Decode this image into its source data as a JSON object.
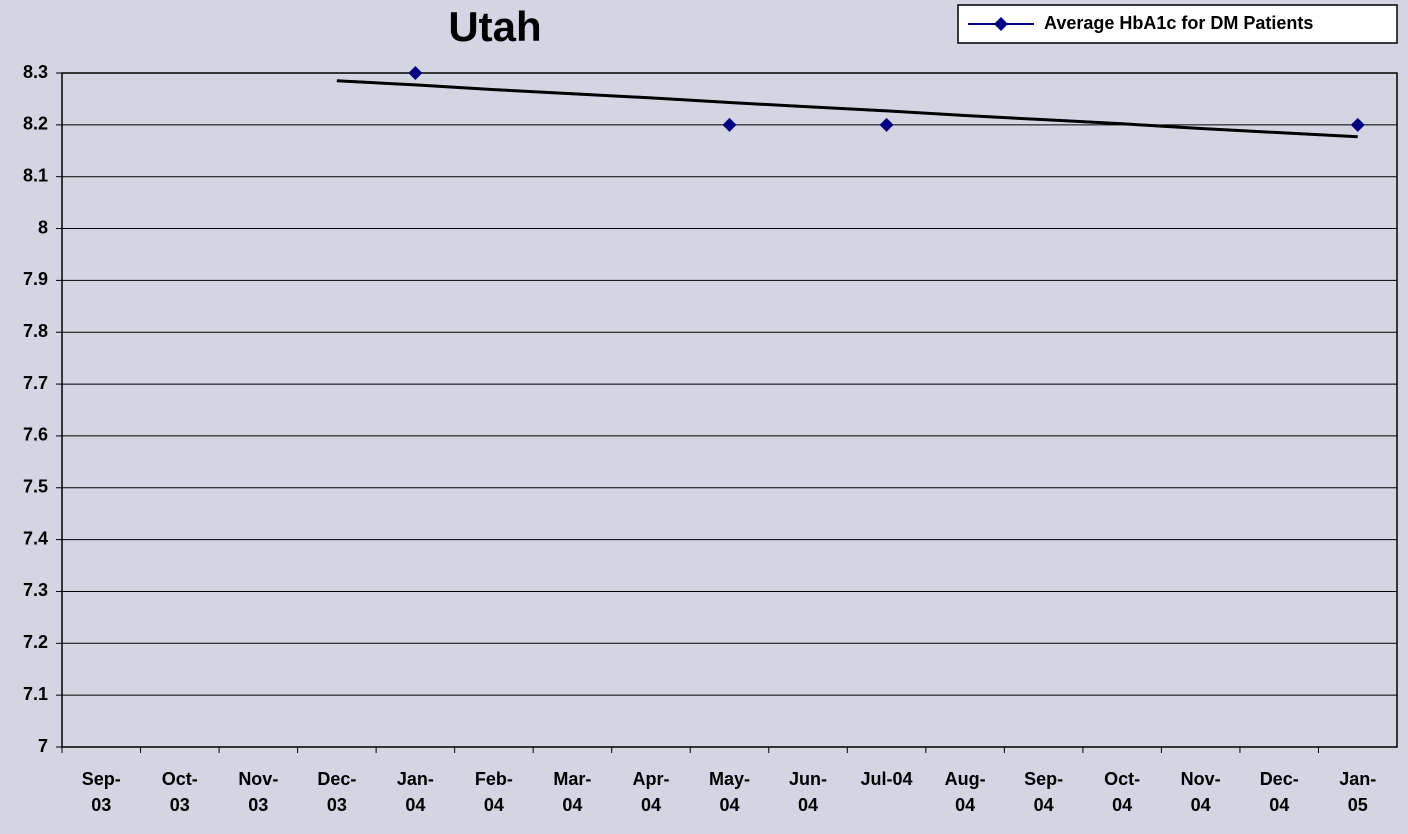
{
  "chart_data": {
    "type": "line",
    "title": "Utah",
    "categories": [
      "Sep-03",
      "Oct-03",
      "Nov-03",
      "Dec-03",
      "Jan-04",
      "Feb-04",
      "Mar-04",
      "Apr-04",
      "May-04",
      "Jun-04",
      "Jul-04",
      "Aug-04",
      "Sep-04",
      "Oct-04",
      "Nov-04",
      "Dec-04",
      "Jan-05"
    ],
    "series": [
      {
        "name": "Average HbA1c for DM Patients",
        "color": "#000080",
        "values": [
          null,
          null,
          null,
          null,
          8.3,
          null,
          null,
          null,
          8.2,
          null,
          8.2,
          null,
          null,
          null,
          null,
          null,
          8.2
        ]
      }
    ],
    "trendline": {
      "color": "#000000",
      "values": [
        null,
        null,
        null,
        8.285,
        8.277,
        8.268,
        8.26,
        8.252,
        8.243,
        8.235,
        8.227,
        8.218,
        8.21,
        8.202,
        8.193,
        8.185,
        8.177
      ]
    },
    "ylim": [
      7,
      8.3
    ],
    "yticks": [
      7,
      7.1,
      7.2,
      7.3,
      7.4,
      7.5,
      7.6,
      7.7,
      7.8,
      7.9,
      8,
      8.1,
      8.2,
      8.3
    ],
    "grid": true,
    "legend": "top-right"
  }
}
